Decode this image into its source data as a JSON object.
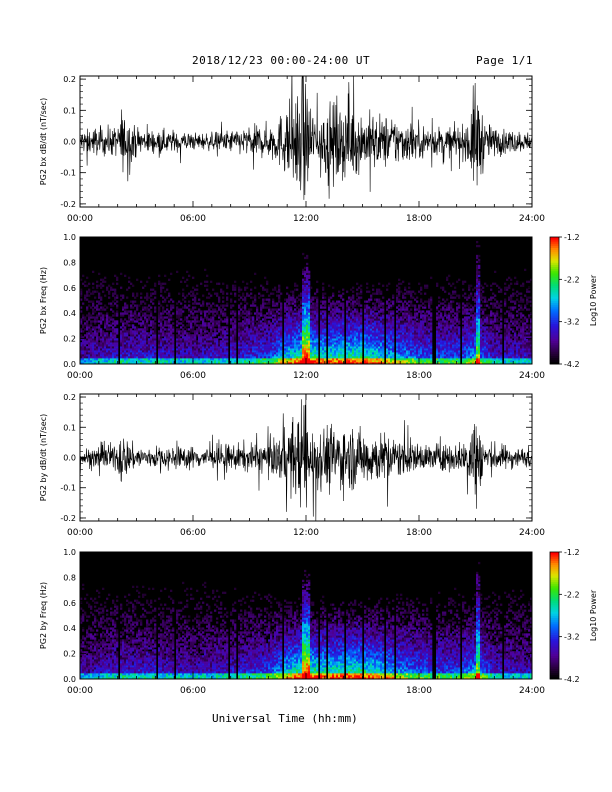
{
  "header": {
    "date_range": "2018/12/23  00:00-24:00 UT",
    "page": "Page 1/1"
  },
  "x_axis_label": "Universal Time (hh:mm)",
  "chart_data": [
    {
      "type": "line",
      "ylabel": "PG2 bx dB/dt (nT/sec)",
      "xlabel": "",
      "x_ticks": [
        "00:00",
        "06:00",
        "12:00",
        "18:00",
        "24:00"
      ],
      "y_ticks": [
        "-0.2",
        "-0.1",
        "0.0",
        "0.1",
        "0.2"
      ],
      "xlim": [
        0,
        24
      ],
      "ylim": [
        -0.21,
        0.21
      ],
      "series": [
        {
          "x_hours": [
            0,
            1,
            2,
            2.2,
            2.4,
            3,
            4,
            5,
            6,
            7,
            8,
            9,
            10,
            10.5,
            11,
            11.5,
            11.8,
            12,
            12.3,
            12.7,
            13,
            13.5,
            14,
            14.5,
            15,
            15.5,
            16,
            16.5,
            17,
            18,
            19,
            20,
            20.5,
            21,
            21.2,
            21.5,
            22,
            23,
            24
          ],
          "amplitude": [
            0.04,
            0.05,
            0.05,
            0.12,
            0.08,
            0.05,
            0.04,
            0.04,
            0.03,
            0.03,
            0.04,
            0.05,
            0.06,
            0.08,
            0.13,
            0.16,
            0.21,
            0.21,
            0.13,
            0.11,
            0.12,
            0.13,
            0.14,
            0.12,
            0.1,
            0.1,
            0.09,
            0.09,
            0.08,
            0.06,
            0.05,
            0.05,
            0.06,
            0.21,
            0.16,
            0.07,
            0.05,
            0.04,
            0.03
          ]
        }
      ]
    },
    {
      "type": "heatmap",
      "ylabel": "PG2 bx Freq (Hz)",
      "x_ticks": [
        "00:00",
        "06:00",
        "12:00",
        "18:00",
        "24:00"
      ],
      "y_ticks": [
        "0.0",
        "0.2",
        "0.4",
        "0.6",
        "0.8",
        "1.0"
      ],
      "xlim": [
        0,
        24
      ],
      "ylim": [
        0,
        1.0
      ],
      "colorbar": {
        "label": "Log10 Power",
        "ticks": [
          "-1.2",
          "-2.2",
          "-3.2",
          "-4.2"
        ],
        "range": [
          -4.2,
          -1.2
        ]
      },
      "activity_hours": [
        0,
        2,
        4,
        6,
        8,
        10,
        11,
        12,
        13,
        14,
        15,
        16,
        17,
        18,
        20,
        21,
        22,
        24
      ],
      "activity_level": [
        0.25,
        0.35,
        0.35,
        0.3,
        0.35,
        0.45,
        0.7,
        0.85,
        0.75,
        0.8,
        0.8,
        0.7,
        0.6,
        0.5,
        0.45,
        0.6,
        0.35,
        0.3
      ],
      "bright_streak_hours": [
        11.9,
        12.1,
        21.1
      ],
      "data_gap_hours": [
        2.1,
        4.1,
        5.0,
        7.9,
        8.3,
        10.8,
        12.7,
        13.1,
        14.1,
        15.0,
        16.2,
        16.7,
        18.8,
        20.2,
        22.5
      ]
    },
    {
      "type": "line",
      "ylabel": "PG2 by dB/dt (nT/sec)",
      "xlabel": "",
      "x_ticks": [
        "00:00",
        "06:00",
        "12:00",
        "18:00",
        "24:00"
      ],
      "y_ticks": [
        "-0.2",
        "-0.1",
        "0.0",
        "0.1",
        "0.2"
      ],
      "xlim": [
        0,
        24
      ],
      "ylim": [
        -0.21,
        0.21
      ],
      "series": [
        {
          "x_hours": [
            0,
            1,
            2,
            2.2,
            2.4,
            3,
            4,
            5,
            6,
            7,
            8,
            9,
            10,
            10.5,
            11,
            11.5,
            11.8,
            12,
            12.3,
            12.7,
            13,
            13.5,
            14,
            14.5,
            15,
            15.5,
            16,
            16.5,
            17,
            18,
            19,
            20,
            20.5,
            21,
            21.2,
            21.5,
            22,
            23,
            24
          ],
          "amplitude": [
            0.03,
            0.04,
            0.05,
            0.11,
            0.07,
            0.04,
            0.04,
            0.04,
            0.04,
            0.04,
            0.05,
            0.05,
            0.06,
            0.07,
            0.11,
            0.15,
            0.21,
            0.21,
            0.12,
            0.1,
            0.12,
            0.12,
            0.12,
            0.11,
            0.1,
            0.1,
            0.09,
            0.08,
            0.07,
            0.05,
            0.05,
            0.05,
            0.06,
            0.21,
            0.14,
            0.06,
            0.05,
            0.04,
            0.03
          ]
        }
      ]
    },
    {
      "type": "heatmap",
      "ylabel": "PG2 by Freq (Hz)",
      "x_ticks": [
        "00:00",
        "06:00",
        "12:00",
        "18:00",
        "24:00"
      ],
      "y_ticks": [
        "0.0",
        "0.2",
        "0.4",
        "0.6",
        "0.8",
        "1.0"
      ],
      "xlim": [
        0,
        24
      ],
      "ylim": [
        0,
        1.0
      ],
      "colorbar": {
        "label": "Log10 Power",
        "ticks": [
          "-1.2",
          "-2.2",
          "-3.2",
          "-4.2"
        ],
        "range": [
          -4.2,
          -1.2
        ]
      },
      "activity_hours": [
        0,
        2,
        4,
        6,
        8,
        10,
        11,
        12,
        13,
        14,
        15,
        16,
        17,
        18,
        20,
        21,
        22,
        24
      ],
      "activity_level": [
        0.25,
        0.35,
        0.35,
        0.3,
        0.35,
        0.45,
        0.7,
        0.85,
        0.75,
        0.8,
        0.8,
        0.7,
        0.6,
        0.5,
        0.45,
        0.6,
        0.35,
        0.3
      ],
      "bright_streak_hours": [
        11.9,
        12.1,
        21.1
      ],
      "data_gap_hours": [
        2.1,
        4.1,
        5.0,
        7.9,
        8.3,
        10.8,
        12.7,
        13.1,
        14.1,
        15.0,
        16.2,
        16.7,
        18.8,
        20.2,
        22.5
      ]
    }
  ]
}
